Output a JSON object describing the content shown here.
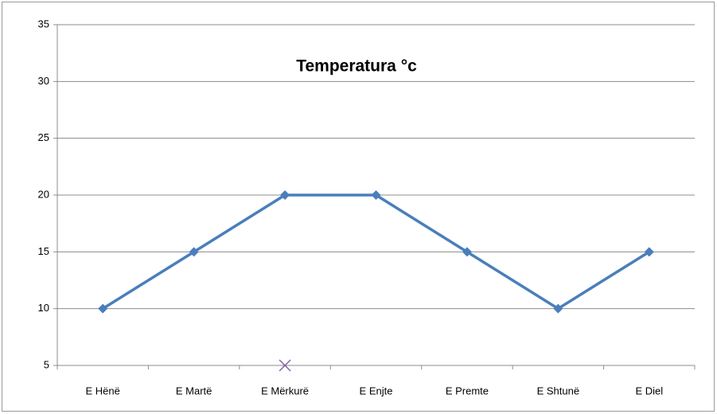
{
  "chart_data": {
    "type": "line",
    "title": "Temperatura °c",
    "categories": [
      "E Hënë",
      "E Martë",
      "E Mërkurë",
      "E Enjte",
      "E Premte",
      "E Shtunë",
      "E Diel"
    ],
    "series": [
      {
        "color": "#4a7ebb",
        "marker": "diamond",
        "values": [
          10,
          15,
          20,
          20,
          15,
          10,
          15
        ]
      },
      {
        "color": "#8064a2",
        "marker": "x",
        "values": [
          null,
          null,
          5,
          null,
          null,
          null,
          null
        ]
      }
    ],
    "ylim": [
      5,
      35
    ],
    "yticks": [
      5,
      10,
      15,
      20,
      25,
      30,
      35
    ],
    "grid": true
  }
}
